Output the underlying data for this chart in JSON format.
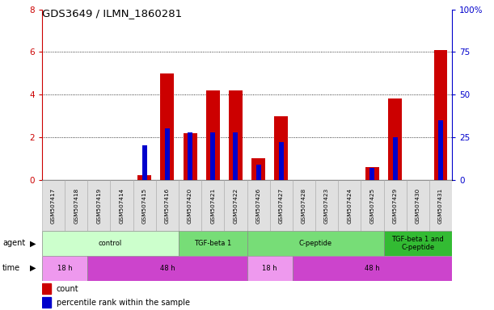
{
  "title": "GDS3649 / ILMN_1860281",
  "samples": [
    "GSM507417",
    "GSM507418",
    "GSM507419",
    "GSM507414",
    "GSM507415",
    "GSM507416",
    "GSM507420",
    "GSM507421",
    "GSM507422",
    "GSM507426",
    "GSM507427",
    "GSM507428",
    "GSM507423",
    "GSM507424",
    "GSM507425",
    "GSM507429",
    "GSM507430",
    "GSM507431"
  ],
  "count_values": [
    0,
    0,
    0,
    0,
    0.2,
    5.0,
    2.2,
    4.2,
    4.2,
    1.0,
    3.0,
    0,
    0,
    0,
    0.6,
    3.8,
    0,
    6.1
  ],
  "percentile_values": [
    0,
    0,
    0,
    0,
    20,
    30,
    28,
    28,
    28,
    9,
    22,
    0,
    0,
    0,
    7,
    25,
    0,
    35
  ],
  "ylim_left": [
    0,
    8
  ],
  "ylim_right": [
    0,
    100
  ],
  "yticks_left": [
    0,
    2,
    4,
    6,
    8
  ],
  "yticks_right": [
    0,
    25,
    50,
    75,
    100
  ],
  "bar_color_red": "#cc0000",
  "bar_color_blue": "#0000cc",
  "bar_width": 0.6,
  "bg_color": "#ffffff",
  "left_tick_color": "#cc0000",
  "right_tick_color": "#0000cc",
  "legend_count_color": "#cc0000",
  "legend_pct_color": "#0000cc",
  "agent_groups": [
    {
      "label": "control",
      "start": 0,
      "end": 5,
      "color": "#ccffcc"
    },
    {
      "label": "TGF-beta 1",
      "start": 6,
      "end": 8,
      "color": "#77dd77"
    },
    {
      "label": "C-peptide",
      "start": 9,
      "end": 14,
      "color": "#77dd77"
    },
    {
      "label": "TGF-beta 1 and\nC-peptide",
      "start": 15,
      "end": 17,
      "color": "#33bb33"
    }
  ],
  "time_groups": [
    {
      "label": "18 h",
      "start": 0,
      "end": 1,
      "color": "#ee99ee"
    },
    {
      "label": "48 h",
      "start": 2,
      "end": 8,
      "color": "#cc44cc"
    },
    {
      "label": "18 h",
      "start": 9,
      "end": 10,
      "color": "#ee99ee"
    },
    {
      "label": "48 h",
      "start": 11,
      "end": 17,
      "color": "#cc44cc"
    }
  ]
}
